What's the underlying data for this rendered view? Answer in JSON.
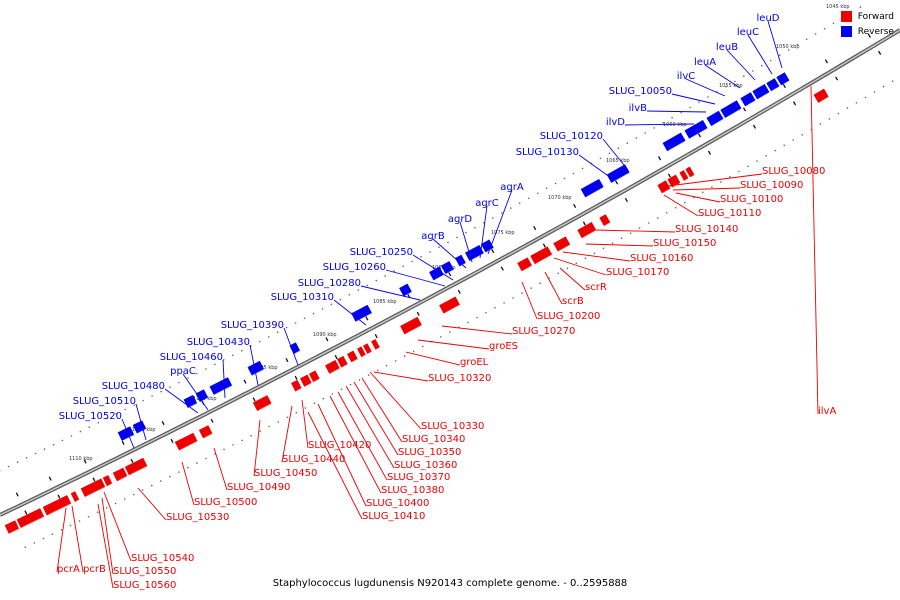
{
  "legend": {
    "forward_label": "Forward",
    "reverse_label": "Reverse",
    "forward_color": "#ee0000",
    "reverse_color": "#0000ee"
  },
  "caption": "Staphylococcus lugdunensis N920143 complete genome. - 0..2595888",
  "colors": {
    "forward": "#ee0000",
    "reverse": "#0000ee",
    "backbone": "#888888"
  },
  "ticks": [
    "1045 kbp",
    "1050 kbp",
    "1055 kbp",
    "1060 kbp",
    "1065 kbp",
    "1070 kbp",
    "1075 kbp",
    "1080 kbp",
    "1085 kbp",
    "1090 kbp",
    "1095 kbp",
    "1100 kbp",
    "1105 kbp",
    "1110 kbp"
  ],
  "reverse_labels": [
    "leuD",
    "leuC",
    "leuB",
    "leuA",
    "ilvC",
    "SLUG_10050",
    "ilvB",
    "ilvD",
    "SLUG_10120",
    "SLUG_10130",
    "agrA",
    "agrC",
    "agrD",
    "agrB",
    "SLUG_10250",
    "SLUG_10260",
    "SLUG_10280",
    "SLUG_10310",
    "SLUG_10390",
    "SLUG_10430",
    "SLUG_10460",
    "ppaC",
    "SLUG_10480",
    "SLUG_10510",
    "SLUG_10520"
  ],
  "forward_labels": [
    "ilvA",
    "SLUG_10080",
    "SLUG_10090",
    "SLUG_10100",
    "SLUG_10110",
    "SLUG_10140",
    "SLUG_10150",
    "SLUG_10160",
    "SLUG_10170",
    "scrR",
    "scrB",
    "SLUG_10200",
    "SLUG_10270",
    "groES",
    "groEL",
    "SLUG_10320",
    "SLUG_10330",
    "SLUG_10340",
    "SLUG_10350",
    "SLUG_10360",
    "SLUG_10370",
    "SLUG_10380",
    "SLUG_10400",
    "SLUG_10410",
    "SLUG_10420",
    "SLUG_10440",
    "SLUG_10450",
    "SLUG_10490",
    "SLUG_10500",
    "SLUG_10530",
    "SLUG_10540",
    "SLUG_10550",
    "SLUG_10560",
    "pcrA",
    "pcrB"
  ]
}
